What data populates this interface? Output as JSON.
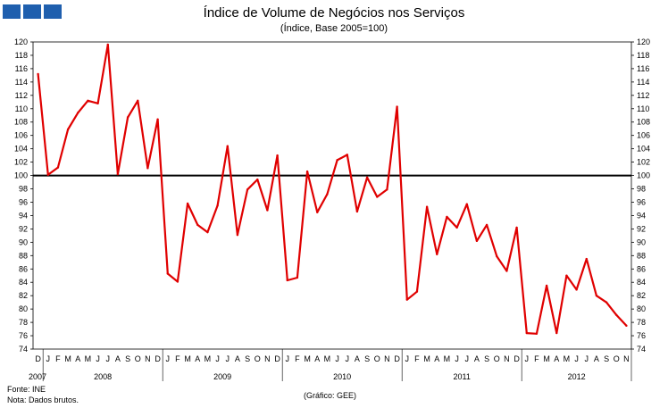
{
  "logo": {
    "name": "ine-logo-blocks",
    "color": "#1f5fae"
  },
  "footer": {
    "source": "Fonte: INE",
    "note": "Nota: Dados brutos.",
    "credit": "(Gráfico: GEE)"
  },
  "chart_data": {
    "type": "line",
    "title": "Índice de Volume de Negócios nos Serviços",
    "subtitle": "(Índice, Base 2005=100)",
    "ylim": [
      74,
      120
    ],
    "ytick_step": 2,
    "reference_line": 100,
    "line_color": "#e00000",
    "month_labels": [
      "D",
      "J",
      "F",
      "M",
      "A",
      "M",
      "J",
      "J",
      "A",
      "S",
      "O",
      "N",
      "D",
      "J",
      "F",
      "M",
      "A",
      "M",
      "J",
      "J",
      "A",
      "S",
      "O",
      "N",
      "D",
      "J",
      "F",
      "M",
      "A",
      "M",
      "J",
      "J",
      "A",
      "S",
      "O",
      "N",
      "D",
      "J",
      "F",
      "M",
      "A",
      "M",
      "J",
      "J",
      "A",
      "S",
      "O",
      "N",
      "D",
      "J",
      "F",
      "M",
      "A",
      "M",
      "J",
      "J",
      "A",
      "S",
      "O",
      "N"
    ],
    "years": [
      {
        "label": "2007",
        "start": 0,
        "end": 0
      },
      {
        "label": "2008",
        "start": 1,
        "end": 12
      },
      {
        "label": "2009",
        "start": 13,
        "end": 24
      },
      {
        "label": "2010",
        "start": 25,
        "end": 36
      },
      {
        "label": "2011",
        "start": 37,
        "end": 48
      },
      {
        "label": "2012",
        "start": 49,
        "end": 59
      }
    ],
    "series": [
      {
        "name": "Índice de Volume de Negócios nos Serviços",
        "values": [
          115.2,
          100.1,
          101.2,
          106.9,
          109.4,
          111.2,
          110.8,
          119.6,
          100.2,
          108.7,
          111.2,
          101.1,
          108.4,
          85.3,
          84.1,
          95.8,
          92.6,
          91.5,
          95.5,
          104.4,
          91.1,
          97.9,
          99.4,
          94.8,
          103.0,
          84.3,
          84.7,
          100.6,
          94.5,
          97.2,
          102.3,
          103.1,
          94.6,
          99.7,
          96.8,
          97.9,
          110.3,
          81.4,
          82.6,
          95.3,
          88.2,
          93.8,
          92.2,
          95.7,
          90.2,
          92.6,
          87.9,
          85.7,
          92.2,
          76.4,
          76.3,
          83.5,
          76.4,
          85.0,
          82.9,
          87.5,
          82.0,
          81.0,
          79.1,
          77.5
        ]
      }
    ]
  }
}
